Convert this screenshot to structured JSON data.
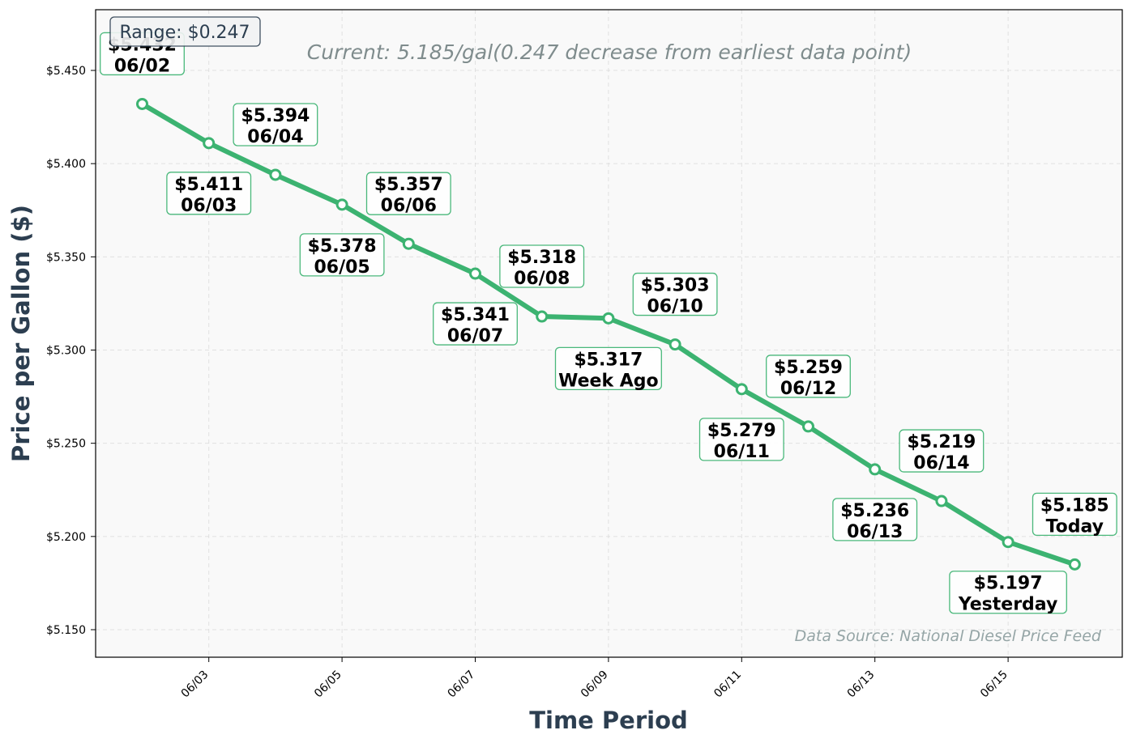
{
  "chart_data": {
    "type": "line",
    "title": "",
    "subtitle": "Current: 5.185/gal(0.247 decrease from earliest data point)",
    "xlabel": "Time Period",
    "ylabel": "Price per Gallon ($)",
    "source_note": "Data Source: National Diesel Price Feed",
    "range_note": "Range: $0.247",
    "ylim": [
      5.135,
      5.483
    ],
    "yticks": [
      "$5.150",
      "$5.200",
      "$5.250",
      "$5.300",
      "$5.350",
      "$5.400",
      "$5.450"
    ],
    "ytick_values": [
      5.15,
      5.2,
      5.25,
      5.3,
      5.35,
      5.4,
      5.45
    ],
    "xticks": [
      "06/03",
      "06/05",
      "06/07",
      "06/09",
      "06/11",
      "06/13",
      "06/15"
    ],
    "grid": true,
    "line_color": "#3cb371",
    "series": [
      {
        "points": [
          {
            "x": "06/02",
            "y": 5.432,
            "label_price": "$5.432",
            "label_date": "06/02"
          },
          {
            "x": "06/03",
            "y": 5.411,
            "label_price": "$5.411",
            "label_date": "06/03"
          },
          {
            "x": "06/04",
            "y": 5.394,
            "label_price": "$5.394",
            "label_date": "06/04"
          },
          {
            "x": "06/05",
            "y": 5.378,
            "label_price": "$5.378",
            "label_date": "06/05"
          },
          {
            "x": "06/06",
            "y": 5.357,
            "label_price": "$5.357",
            "label_date": "06/06"
          },
          {
            "x": "06/07",
            "y": 5.341,
            "label_price": "$5.341",
            "label_date": "06/07"
          },
          {
            "x": "06/08",
            "y": 5.318,
            "label_price": "$5.318",
            "label_date": "06/08"
          },
          {
            "x": "06/09",
            "y": 5.317,
            "label_price": "$5.317",
            "label_date": "Week Ago"
          },
          {
            "x": "06/10",
            "y": 5.303,
            "label_price": "$5.303",
            "label_date": "06/10"
          },
          {
            "x": "06/11",
            "y": 5.279,
            "label_price": "$5.279",
            "label_date": "06/11"
          },
          {
            "x": "06/12",
            "y": 5.259,
            "label_price": "$5.259",
            "label_date": "06/12"
          },
          {
            "x": "06/13",
            "y": 5.236,
            "label_price": "$5.236",
            "label_date": "06/13"
          },
          {
            "x": "06/14",
            "y": 5.219,
            "label_price": "$5.219",
            "label_date": "06/14"
          },
          {
            "x": "06/15",
            "y": 5.197,
            "label_price": "$5.197",
            "label_date": "Yesterday"
          },
          {
            "x": "06/16",
            "y": 5.185,
            "label_price": "$5.185",
            "label_date": "Today"
          }
        ]
      }
    ]
  }
}
